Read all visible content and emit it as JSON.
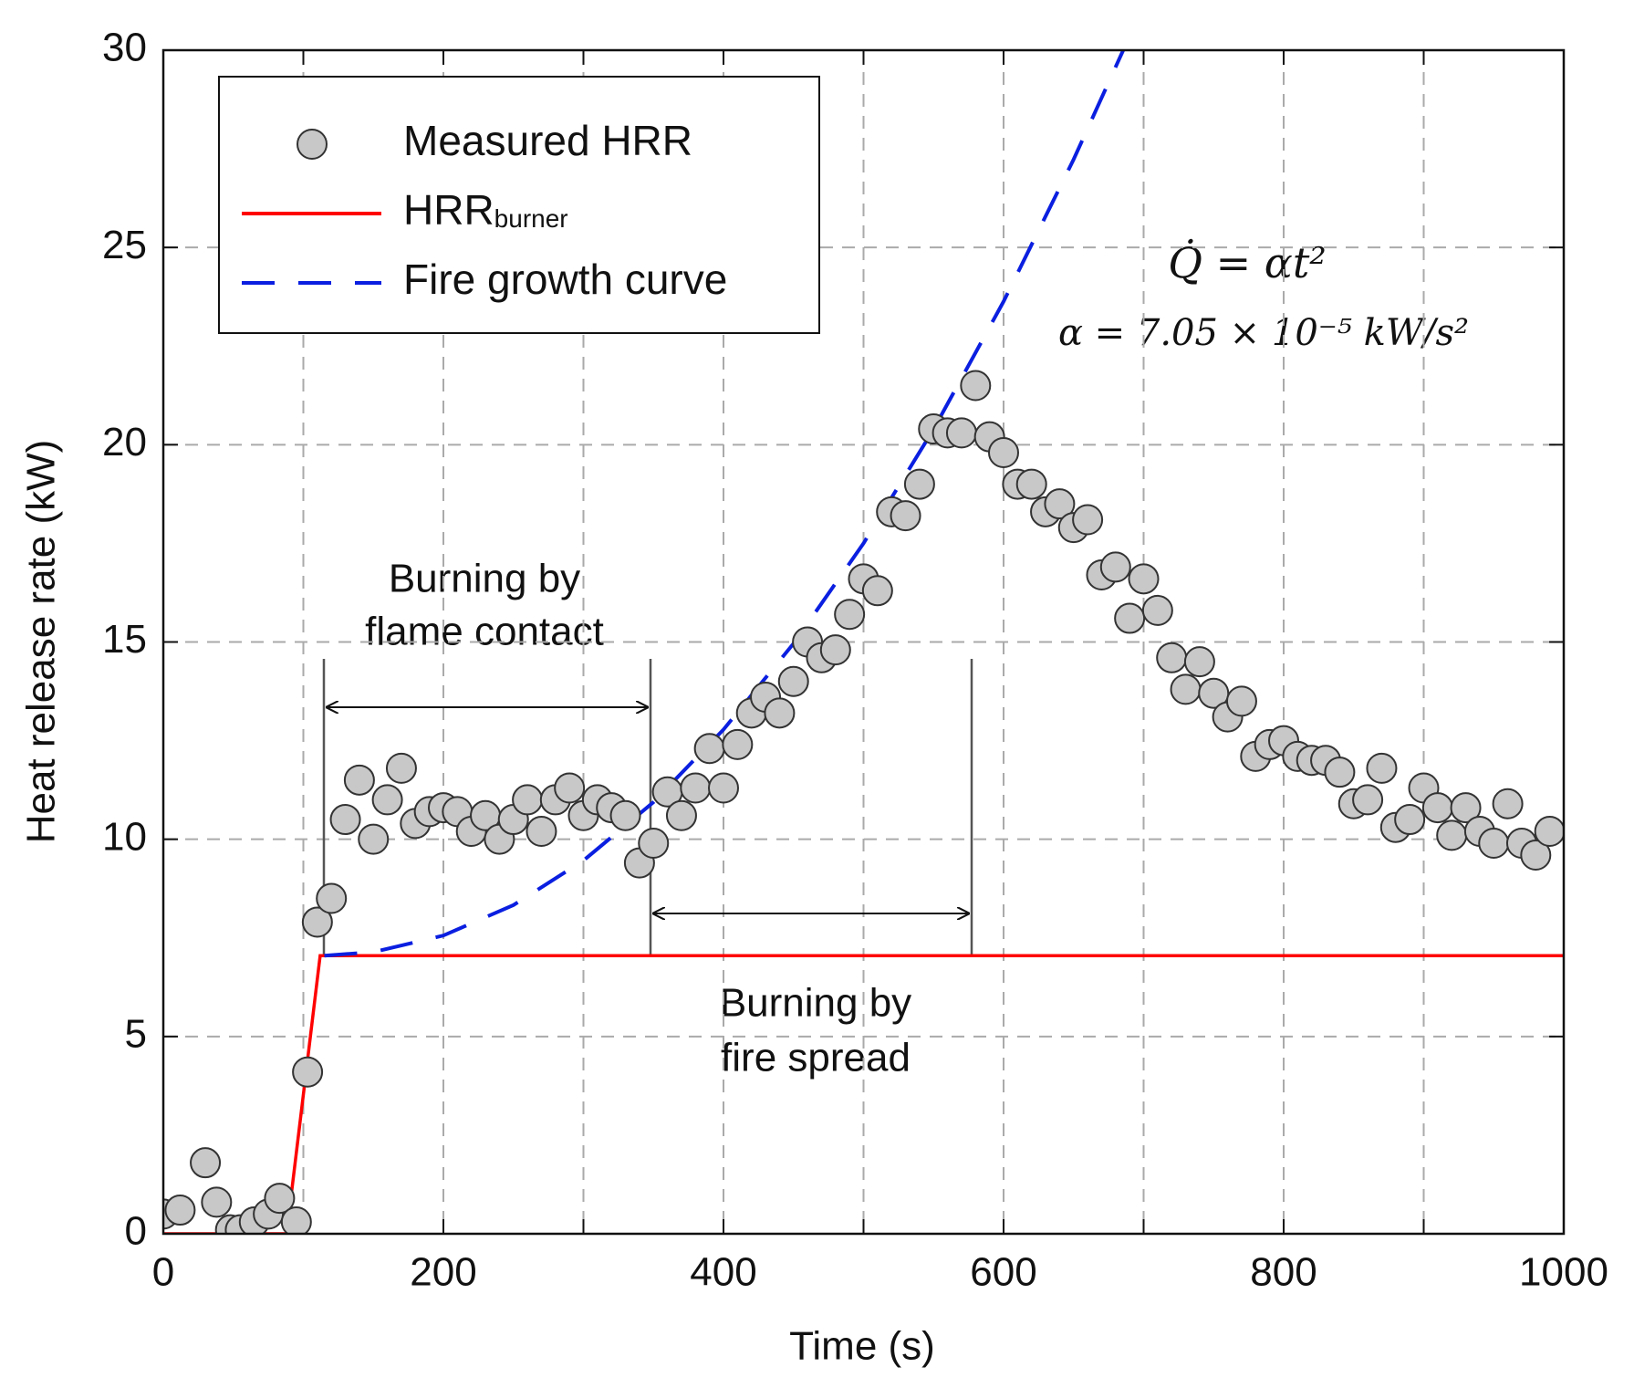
{
  "chart_data": {
    "type": "scatter_line",
    "xlabel": "Time (s)",
    "ylabel": "Heat release rate (kW)",
    "xlim": [
      0,
      1000
    ],
    "ylim": [
      0,
      30
    ],
    "xticks": [
      0,
      200,
      400,
      600,
      800,
      1000
    ],
    "x_minor_ticks": [
      100,
      300,
      500,
      700,
      900
    ],
    "yticks": [
      0,
      5,
      10,
      15,
      20,
      25,
      30
    ],
    "grid": true,
    "legend": "upper left",
    "series": [
      {
        "name": "Measured HRR",
        "kind": "scatter",
        "color": "#c8c8c8",
        "x": [
          0,
          12,
          30,
          38,
          48,
          55,
          65,
          75,
          83,
          95,
          103,
          110,
          120,
          130,
          140,
          150,
          160,
          170,
          180,
          190,
          200,
          210,
          220,
          230,
          240,
          250,
          260,
          270,
          280,
          290,
          300,
          310,
          320,
          330,
          340,
          350,
          360,
          370,
          380,
          390,
          400,
          410,
          420,
          430,
          440,
          450,
          460,
          470,
          480,
          490,
          500,
          510,
          520,
          530,
          540,
          550,
          560,
          570,
          580,
          590,
          600,
          610,
          620,
          630,
          640,
          650,
          660,
          670,
          680,
          690,
          700,
          710,
          720,
          730,
          740,
          750,
          760,
          770,
          780,
          790,
          800,
          810,
          820,
          830,
          840,
          850,
          860,
          870,
          880,
          890,
          900,
          910,
          920,
          930,
          940,
          950,
          960,
          970,
          980,
          990
        ],
        "values": [
          0.5,
          0.6,
          1.8,
          0.8,
          0.1,
          0.1,
          0.3,
          0.5,
          0.9,
          0.3,
          4.1,
          7.9,
          8.5,
          10.5,
          11.5,
          10.0,
          11.0,
          11.8,
          10.4,
          10.7,
          10.8,
          10.7,
          10.2,
          10.6,
          10.0,
          10.5,
          11.0,
          10.2,
          11.0,
          11.3,
          10.6,
          11.0,
          10.8,
          10.6,
          9.4,
          9.9,
          11.2,
          10.6,
          11.3,
          12.3,
          11.3,
          12.4,
          13.2,
          13.6,
          13.2,
          14.0,
          15.0,
          14.6,
          14.8,
          15.7,
          16.6,
          16.3,
          18.3,
          18.2,
          19.0,
          20.4,
          20.3,
          20.3,
          21.5,
          20.2,
          19.8,
          19.0,
          19.0,
          18.3,
          18.5,
          17.9,
          18.1,
          16.7,
          16.9,
          15.6,
          16.6,
          15.8,
          14.6,
          13.8,
          14.5,
          13.7,
          13.1,
          13.5,
          12.1,
          12.4,
          12.5,
          12.1,
          12.0,
          12.0,
          11.7,
          10.9,
          11.0,
          11.8,
          10.3,
          10.5,
          11.3,
          10.8,
          10.1,
          10.8,
          10.2,
          9.9,
          10.9,
          9.9,
          9.6,
          10.2
        ]
      },
      {
        "name": "HRR",
        "name_subscript": "burner",
        "kind": "line",
        "color": "#ff0000",
        "x": [
          0,
          88,
          112,
          1000
        ],
        "values": [
          0,
          0,
          7.05,
          7.05
        ]
      },
      {
        "name": "Fire growth curve",
        "kind": "dashed",
        "color": "#0a1fe0",
        "x": [
          115,
          150,
          200,
          250,
          300,
          350,
          400,
          450,
          500,
          550,
          600,
          650,
          688
        ],
        "values": [
          7.05,
          7.14,
          7.56,
          8.33,
          9.46,
          10.94,
          12.78,
          14.96,
          17.5,
          20.39,
          23.63,
          27.23,
          30.2
        ]
      }
    ],
    "annotations": {
      "flame_contact": [
        "Burning by",
        "flame contact"
      ],
      "fire_spread": [
        "Burning by",
        "fire spread"
      ],
      "formula": "Q̇ = αt²",
      "alpha": "α = 7.05 × 10⁻⁵  kW/s²"
    }
  }
}
